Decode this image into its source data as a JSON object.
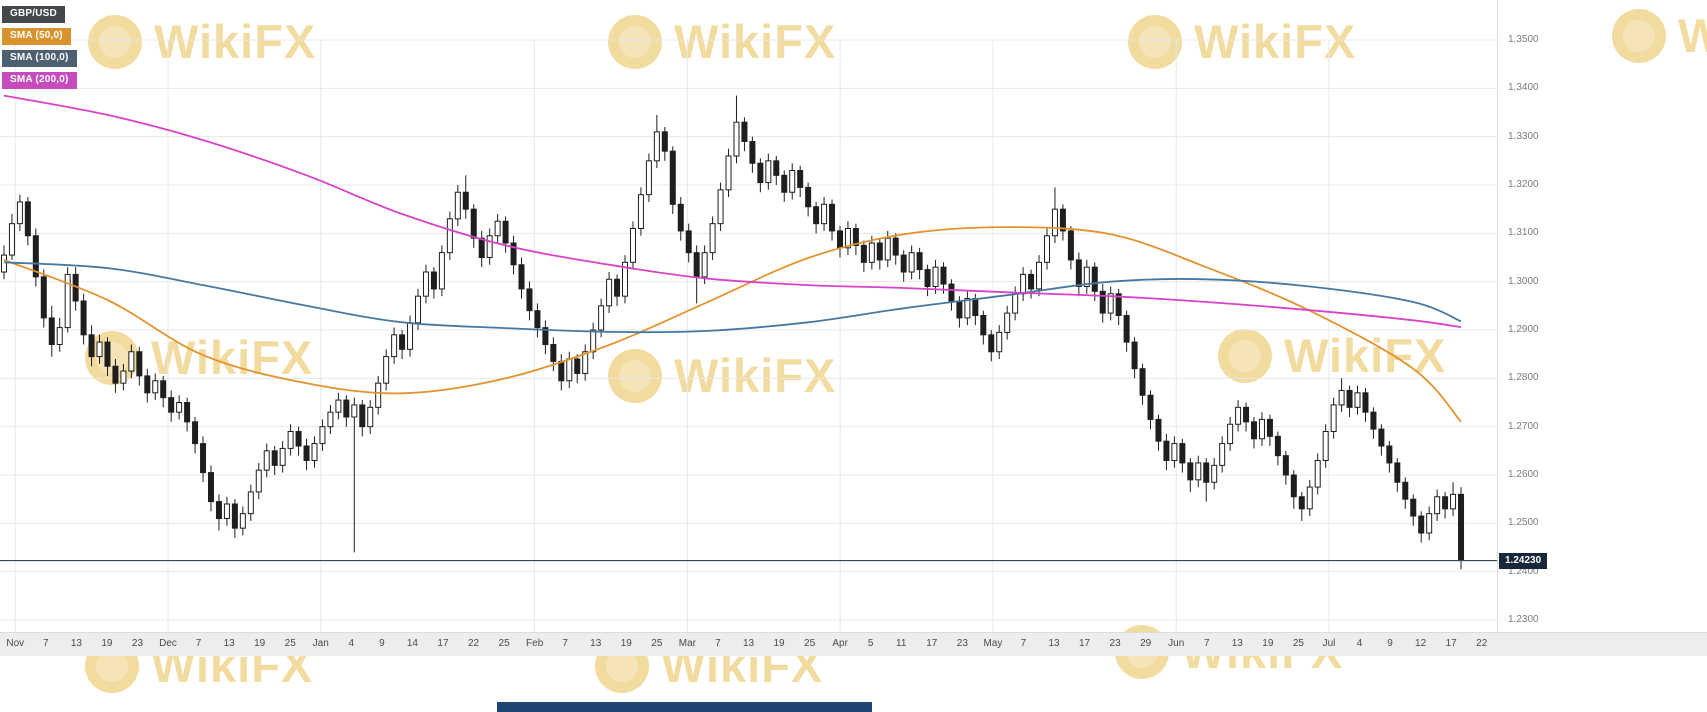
{
  "legend": {
    "items": [
      {
        "label": "GBP/USD",
        "chip_color": "#43484d"
      },
      {
        "label": "SMA (50,0)",
        "chip_color": "#d8932f"
      },
      {
        "label": "SMA (100,0)",
        "chip_color": "#4c6072"
      },
      {
        "label": "SMA (200,0)",
        "chip_color": "#c64bbd"
      }
    ]
  },
  "watermark": {
    "text": "WikiFX"
  },
  "colors": {
    "watermark": "#e4b83f",
    "bottom_bar": "#1d4673",
    "price_label_bg": "#16293c"
  },
  "price_axis": {
    "labels": [
      "1.3500",
      "1.3400",
      "1.3300",
      "1.3200",
      "1.3100",
      "1.3000",
      "1.2900",
      "1.2800",
      "1.2700",
      "1.2600",
      "1.2500",
      "1.2400",
      "1.2300"
    ],
    "current": {
      "label": "1.24230",
      "value": 1.2423
    }
  },
  "time_axis": {
    "labels": [
      "Nov",
      "7",
      "13",
      "19",
      "23",
      "Dec",
      "7",
      "13",
      "19",
      "25",
      "Jan",
      "4",
      "9",
      "14",
      "17",
      "22",
      "25",
      "Feb",
      "7",
      "13",
      "19",
      "25",
      "Mar",
      "7",
      "13",
      "19",
      "25",
      "Apr",
      "5",
      "11",
      "17",
      "23",
      "May",
      "7",
      "13",
      "17",
      "23",
      "29",
      "Jun",
      "7",
      "13",
      "19",
      "25",
      "Jul",
      "4",
      "9",
      "12",
      "17",
      "22"
    ],
    "month_label_indices": [
      0,
      5,
      10,
      17,
      22,
      27,
      32,
      38,
      43
    ]
  },
  "chart_data": {
    "type": "candlestick",
    "symbol": "GBP/USD",
    "last_price": 1.2423,
    "ylim": [
      1.23,
      1.35
    ],
    "y_tick_step": 0.01,
    "grid": true,
    "colors": {
      "grid": "#e8e8e8",
      "up": "#ffffff",
      "down": "#1e1e1e",
      "price_line": "#33475c"
    },
    "candles": [
      [
        1.302,
        1.3075,
        1.3005,
        1.3055
      ],
      [
        1.3055,
        1.314,
        1.3045,
        1.312
      ],
      [
        1.312,
        1.318,
        1.3105,
        1.3165
      ],
      [
        1.3165,
        1.3175,
        1.3075,
        1.3095
      ],
      [
        1.3095,
        1.311,
        1.299,
        1.301
      ],
      [
        1.301,
        1.3025,
        1.2905,
        1.2925
      ],
      [
        1.2925,
        1.295,
        1.2845,
        1.287
      ],
      [
        1.287,
        1.2925,
        1.2855,
        1.2905
      ],
      [
        1.2905,
        1.303,
        1.2895,
        1.3015
      ],
      [
        1.3015,
        1.303,
        1.294,
        1.296
      ],
      [
        1.296,
        1.2975,
        1.287,
        1.289
      ],
      [
        1.289,
        1.291,
        1.2825,
        1.2845
      ],
      [
        1.2845,
        1.289,
        1.283,
        1.2875
      ],
      [
        1.2875,
        1.2885,
        1.2805,
        1.2825
      ],
      [
        1.2825,
        1.284,
        1.277,
        1.279
      ],
      [
        1.279,
        1.283,
        1.2775,
        1.2815
      ],
      [
        1.2815,
        1.287,
        1.28,
        1.2855
      ],
      [
        1.2855,
        1.2865,
        1.2785,
        1.2805
      ],
      [
        1.2805,
        1.282,
        1.275,
        1.277
      ],
      [
        1.277,
        1.281,
        1.2755,
        1.2795
      ],
      [
        1.2795,
        1.2805,
        1.274,
        1.276
      ],
      [
        1.276,
        1.2775,
        1.271,
        1.273
      ],
      [
        1.273,
        1.2765,
        1.2715,
        1.275
      ],
      [
        1.275,
        1.276,
        1.269,
        1.271
      ],
      [
        1.271,
        1.272,
        1.2645,
        1.2665
      ],
      [
        1.2665,
        1.268,
        1.2585,
        1.2605
      ],
      [
        1.2605,
        1.262,
        1.2525,
        1.2545
      ],
      [
        1.2545,
        1.256,
        1.2485,
        1.251
      ],
      [
        1.251,
        1.2555,
        1.2495,
        1.254
      ],
      [
        1.254,
        1.255,
        1.247,
        1.249
      ],
      [
        1.249,
        1.2535,
        1.2475,
        1.252
      ],
      [
        1.252,
        1.258,
        1.2505,
        1.2565
      ],
      [
        1.2565,
        1.2625,
        1.255,
        1.261
      ],
      [
        1.261,
        1.2665,
        1.2595,
        1.265
      ],
      [
        1.265,
        1.266,
        1.26,
        1.262
      ],
      [
        1.262,
        1.267,
        1.2605,
        1.2655
      ],
      [
        1.2655,
        1.2705,
        1.264,
        1.269
      ],
      [
        1.269,
        1.27,
        1.264,
        1.266
      ],
      [
        1.266,
        1.2675,
        1.261,
        1.263
      ],
      [
        1.263,
        1.268,
        1.2615,
        1.2665
      ],
      [
        1.2665,
        1.2715,
        1.265,
        1.27
      ],
      [
        1.27,
        1.2745,
        1.2685,
        1.273
      ],
      [
        1.273,
        1.277,
        1.2715,
        1.2755
      ],
      [
        1.2755,
        1.2765,
        1.27,
        1.272
      ],
      [
        1.272,
        1.276,
        1.244,
        1.2745
      ],
      [
        1.2745,
        1.2755,
        1.268,
        1.27
      ],
      [
        1.27,
        1.2755,
        1.2685,
        1.274
      ],
      [
        1.274,
        1.2805,
        1.2725,
        1.279
      ],
      [
        1.279,
        1.286,
        1.2775,
        1.2845
      ],
      [
        1.2845,
        1.2905,
        1.283,
        1.289
      ],
      [
        1.289,
        1.29,
        1.284,
        1.286
      ],
      [
        1.286,
        1.293,
        1.2845,
        1.2915
      ],
      [
        1.2915,
        1.2985,
        1.29,
        1.297
      ],
      [
        1.297,
        1.3035,
        1.2955,
        1.302
      ],
      [
        1.302,
        1.303,
        1.2965,
        1.2985
      ],
      [
        1.2985,
        1.3075,
        1.297,
        1.306
      ],
      [
        1.306,
        1.3145,
        1.3045,
        1.313
      ],
      [
        1.313,
        1.32,
        1.3115,
        1.3185
      ],
      [
        1.3185,
        1.322,
        1.313,
        1.315
      ],
      [
        1.315,
        1.316,
        1.307,
        1.309
      ],
      [
        1.309,
        1.3105,
        1.303,
        1.305
      ],
      [
        1.305,
        1.311,
        1.3035,
        1.3095
      ],
      [
        1.3095,
        1.314,
        1.308,
        1.3125
      ],
      [
        1.3125,
        1.3135,
        1.306,
        1.308
      ],
      [
        1.308,
        1.3095,
        1.3015,
        1.3035
      ],
      [
        1.3035,
        1.305,
        1.2965,
        1.2985
      ],
      [
        1.2985,
        1.3,
        1.292,
        1.294
      ],
      [
        1.294,
        1.2955,
        1.2885,
        1.2905
      ],
      [
        1.2905,
        1.292,
        1.285,
        1.287
      ],
      [
        1.287,
        1.2885,
        1.2815,
        1.2835
      ],
      [
        1.2835,
        1.285,
        1.2775,
        1.2795
      ],
      [
        1.2795,
        1.2855,
        1.278,
        1.284
      ],
      [
        1.284,
        1.285,
        1.279,
        1.281
      ],
      [
        1.281,
        1.287,
        1.2795,
        1.2855
      ],
      [
        1.2855,
        1.2915,
        1.284,
        1.29
      ],
      [
        1.29,
        1.2965,
        1.2885,
        1.295
      ],
      [
        1.295,
        1.302,
        1.2935,
        1.3005
      ],
      [
        1.3005,
        1.3015,
        1.295,
        1.297
      ],
      [
        1.297,
        1.3055,
        1.2955,
        1.304
      ],
      [
        1.304,
        1.3125,
        1.3025,
        1.311
      ],
      [
        1.311,
        1.3195,
        1.3095,
        1.318
      ],
      [
        1.318,
        1.3265,
        1.3165,
        1.325
      ],
      [
        1.325,
        1.3345,
        1.3235,
        1.331
      ],
      [
        1.331,
        1.332,
        1.325,
        1.327
      ],
      [
        1.327,
        1.328,
        1.314,
        1.316
      ],
      [
        1.316,
        1.3175,
        1.3085,
        1.3105
      ],
      [
        1.3105,
        1.312,
        1.304,
        1.306
      ],
      [
        1.306,
        1.3075,
        1.2955,
        1.301
      ],
      [
        1.301,
        1.3075,
        1.2995,
        1.306
      ],
      [
        1.306,
        1.3135,
        1.3045,
        1.312
      ],
      [
        1.312,
        1.3205,
        1.3105,
        1.319
      ],
      [
        1.319,
        1.3275,
        1.3175,
        1.326
      ],
      [
        1.326,
        1.3385,
        1.3245,
        1.333
      ],
      [
        1.333,
        1.334,
        1.327,
        1.329
      ],
      [
        1.329,
        1.33,
        1.3225,
        1.3245
      ],
      [
        1.3245,
        1.3255,
        1.3185,
        1.3205
      ],
      [
        1.3205,
        1.3265,
        1.319,
        1.325
      ],
      [
        1.325,
        1.326,
        1.32,
        1.322
      ],
      [
        1.322,
        1.323,
        1.3165,
        1.3185
      ],
      [
        1.3185,
        1.3245,
        1.317,
        1.323
      ],
      [
        1.323,
        1.324,
        1.3175,
        1.3195
      ],
      [
        1.3195,
        1.3205,
        1.3135,
        1.3155
      ],
      [
        1.3155,
        1.3165,
        1.31,
        1.312
      ],
      [
        1.312,
        1.3175,
        1.3105,
        1.316
      ],
      [
        1.316,
        1.317,
        1.3085,
        1.3105
      ],
      [
        1.3105,
        1.3115,
        1.305,
        1.307
      ],
      [
        1.307,
        1.3125,
        1.3055,
        1.311
      ],
      [
        1.311,
        1.312,
        1.3055,
        1.3075
      ],
      [
        1.3075,
        1.3085,
        1.302,
        1.304
      ],
      [
        1.304,
        1.3095,
        1.3025,
        1.308
      ],
      [
        1.308,
        1.309,
        1.3025,
        1.3045
      ],
      [
        1.3045,
        1.3105,
        1.303,
        1.309
      ],
      [
        1.309,
        1.31,
        1.3035,
        1.3055
      ],
      [
        1.3055,
        1.3065,
        1.3,
        1.302
      ],
      [
        1.302,
        1.3075,
        1.3005,
        1.306
      ],
      [
        1.306,
        1.307,
        1.3005,
        1.3025
      ],
      [
        1.3025,
        1.3035,
        1.297,
        1.299
      ],
      [
        1.299,
        1.3045,
        1.2975,
        1.303
      ],
      [
        1.303,
        1.304,
        1.2975,
        1.2995
      ],
      [
        1.2995,
        1.3005,
        1.294,
        1.296
      ],
      [
        1.296,
        1.297,
        1.2905,
        1.2925
      ],
      [
        1.2925,
        1.298,
        1.291,
        1.2965
      ],
      [
        1.2965,
        1.2975,
        1.291,
        1.293
      ],
      [
        1.293,
        1.294,
        1.287,
        1.289
      ],
      [
        1.289,
        1.29,
        1.2835,
        1.2855
      ],
      [
        1.2855,
        1.291,
        1.284,
        1.2895
      ],
      [
        1.2895,
        1.295,
        1.288,
        1.2935
      ],
      [
        1.2935,
        1.299,
        1.292,
        1.2975
      ],
      [
        1.2975,
        1.303,
        1.296,
        1.3015
      ],
      [
        1.3015,
        1.3025,
        1.2965,
        1.2985
      ],
      [
        1.2985,
        1.3055,
        1.297,
        1.304
      ],
      [
        1.304,
        1.311,
        1.3025,
        1.3095
      ],
      [
        1.3095,
        1.3195,
        1.308,
        1.315
      ],
      [
        1.315,
        1.316,
        1.3085,
        1.3105
      ],
      [
        1.3105,
        1.3115,
        1.3025,
        1.3045
      ],
      [
        1.3045,
        1.306,
        1.297,
        1.299
      ],
      [
        1.299,
        1.3045,
        1.2975,
        1.303
      ],
      [
        1.303,
        1.304,
        1.296,
        1.298
      ],
      [
        1.298,
        1.2995,
        1.2915,
        1.2935
      ],
      [
        1.2935,
        1.299,
        1.292,
        1.2975
      ],
      [
        1.2975,
        1.2985,
        1.291,
        1.293
      ],
      [
        1.293,
        1.294,
        1.2855,
        1.2875
      ],
      [
        1.2875,
        1.2885,
        1.28,
        1.282
      ],
      [
        1.282,
        1.283,
        1.2745,
        1.2765
      ],
      [
        1.2765,
        1.2775,
        1.2695,
        1.2715
      ],
      [
        1.2715,
        1.2725,
        1.265,
        1.267
      ],
      [
        1.267,
        1.2685,
        1.261,
        1.263
      ],
      [
        1.263,
        1.268,
        1.2615,
        1.2665
      ],
      [
        1.2665,
        1.2675,
        1.2605,
        1.2625
      ],
      [
        1.2625,
        1.2635,
        1.2565,
        1.259
      ],
      [
        1.259,
        1.264,
        1.2575,
        1.2625
      ],
      [
        1.2625,
        1.2635,
        1.2545,
        1.2585
      ],
      [
        1.2585,
        1.2635,
        1.257,
        1.262
      ],
      [
        1.262,
        1.268,
        1.2605,
        1.2665
      ],
      [
        1.2665,
        1.272,
        1.265,
        1.2705
      ],
      [
        1.2705,
        1.2755,
        1.269,
        1.274
      ],
      [
        1.274,
        1.275,
        1.269,
        1.271
      ],
      [
        1.271,
        1.272,
        1.2655,
        1.2675
      ],
      [
        1.2675,
        1.273,
        1.266,
        1.2715
      ],
      [
        1.2715,
        1.2725,
        1.266,
        1.268
      ],
      [
        1.268,
        1.269,
        1.262,
        1.264
      ],
      [
        1.264,
        1.265,
        1.258,
        1.26
      ],
      [
        1.26,
        1.261,
        1.253,
        1.2555
      ],
      [
        1.2555,
        1.2565,
        1.2505,
        1.253
      ],
      [
        1.253,
        1.259,
        1.2515,
        1.2575
      ],
      [
        1.2575,
        1.2645,
        1.256,
        1.263
      ],
      [
        1.263,
        1.2705,
        1.2615,
        1.269
      ],
      [
        1.269,
        1.276,
        1.2675,
        1.2745
      ],
      [
        1.2745,
        1.28,
        1.273,
        1.2775
      ],
      [
        1.2775,
        1.2785,
        1.272,
        1.274
      ],
      [
        1.274,
        1.2785,
        1.2725,
        1.277
      ],
      [
        1.277,
        1.278,
        1.271,
        1.273
      ],
      [
        1.273,
        1.274,
        1.2675,
        1.2695
      ],
      [
        1.2695,
        1.2705,
        1.264,
        1.266
      ],
      [
        1.266,
        1.267,
        1.2605,
        1.2625
      ],
      [
        1.2625,
        1.2635,
        1.2565,
        1.2585
      ],
      [
        1.2585,
        1.2595,
        1.253,
        1.255
      ],
      [
        1.255,
        1.256,
        1.2495,
        1.2515
      ],
      [
        1.2515,
        1.2525,
        1.246,
        1.248
      ],
      [
        1.248,
        1.2535,
        1.2465,
        1.252
      ],
      [
        1.252,
        1.257,
        1.2505,
        1.2555
      ],
      [
        1.2555,
        1.2565,
        1.251,
        1.253
      ],
      [
        1.253,
        1.2585,
        1.2515,
        1.256
      ],
      [
        1.256,
        1.2575,
        1.2405,
        1.2423
      ]
    ],
    "overlays": [
      {
        "name": "SMA (50,0)",
        "period": 50,
        "color": "#e2932e",
        "idx": [
          0,
          13,
          25,
          38,
          50,
          63,
          76,
          88,
          101,
          113,
          126,
          139,
          151,
          164,
          177,
          183
        ],
        "values": [
          1.3045,
          1.2962,
          1.2848,
          1.279,
          1.2769,
          1.28,
          1.2869,
          1.2955,
          1.3049,
          1.3098,
          1.3113,
          1.3098,
          1.303,
          1.294,
          1.282,
          1.271
        ]
      },
      {
        "name": "SMA (100,0)",
        "period": 100,
        "color": "#4579a2",
        "idx": [
          0,
          13,
          25,
          38,
          50,
          63,
          76,
          88,
          101,
          113,
          126,
          139,
          151,
          164,
          177,
          183
        ],
        "values": [
          1.304,
          1.3028,
          1.2993,
          1.295,
          1.2916,
          1.2904,
          1.2896,
          1.2898,
          1.2916,
          1.2945,
          1.2972,
          1.3,
          1.3005,
          1.299,
          1.2958,
          1.2918
        ]
      },
      {
        "name": "SMA (200,0)",
        "period": 200,
        "color": "#d843c8",
        "idx": [
          0,
          13,
          25,
          38,
          50,
          63,
          76,
          88,
          101,
          113,
          126,
          139,
          151,
          164,
          177,
          183
        ],
        "values": [
          1.3385,
          1.3345,
          1.3293,
          1.322,
          1.314,
          1.3075,
          1.3035,
          1.3007,
          1.2993,
          1.2987,
          1.2978,
          1.297,
          1.2958,
          1.2941,
          1.292,
          1.2906
        ]
      }
    ]
  }
}
